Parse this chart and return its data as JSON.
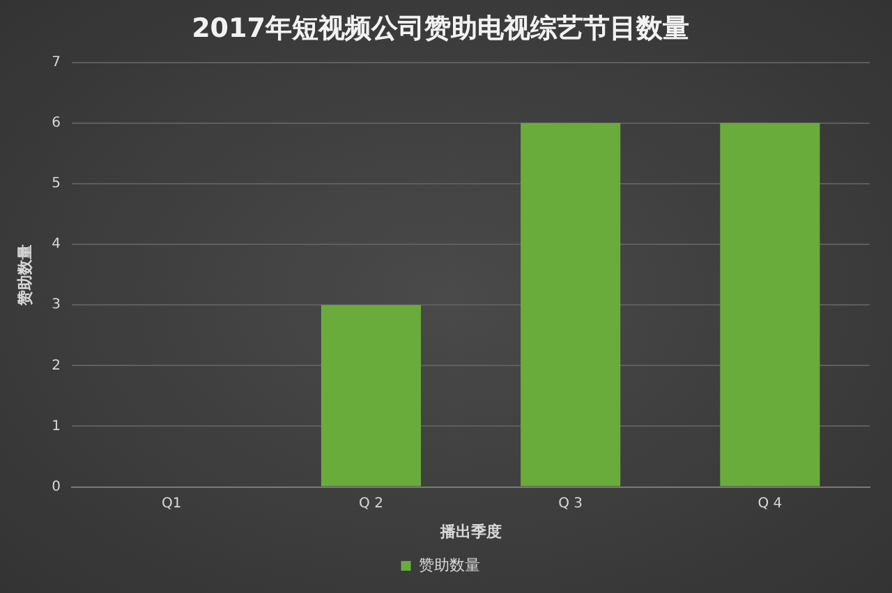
{
  "chart_data": {
    "type": "bar",
    "title": "2017年短视频公司赞助电视综艺节目数量",
    "xlabel": "播出季度",
    "ylabel": "赞助数量",
    "categories": [
      "Q1",
      "Q 2",
      "Q 3",
      "Q 4"
    ],
    "series": [
      {
        "name": "赞助数量",
        "color": "#6aac3c",
        "values": [
          0,
          3,
          6,
          6
        ]
      }
    ],
    "ylim": [
      0,
      7
    ],
    "yticks": [
      0,
      1,
      2,
      3,
      4,
      5,
      6,
      7
    ],
    "grid": "y",
    "legend": "bottom"
  }
}
